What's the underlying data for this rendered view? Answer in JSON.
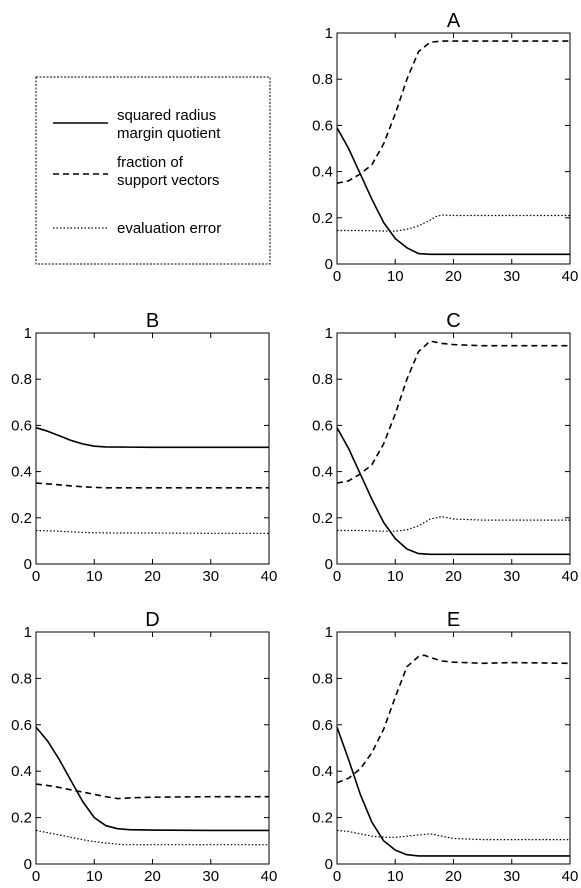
{
  "legend": {
    "entries": [
      {
        "label_lines": [
          "squared radius",
          "margin quotient"
        ],
        "style": "solid"
      },
      {
        "label_lines": [
          "fraction of",
          "support vectors"
        ],
        "style": "dashed"
      },
      {
        "label_lines": [
          "evaluation error"
        ],
        "style": "dotted"
      }
    ]
  },
  "chart_data": [
    {
      "type": "line",
      "title": "A",
      "xlim": [
        0,
        40
      ],
      "ylim": [
        0,
        1
      ],
      "xticks": [
        "0",
        "10",
        "20",
        "30",
        "40"
      ],
      "yticks": [
        "0",
        "0.2",
        "0.4",
        "0.6",
        "0.8",
        "1"
      ],
      "grid": false,
      "series": [
        {
          "style": "solid",
          "x": [
            0,
            2,
            4,
            6,
            8,
            10,
            12,
            14,
            16,
            20,
            30,
            40
          ],
          "y": [
            0.59,
            0.5,
            0.39,
            0.28,
            0.18,
            0.11,
            0.07,
            0.045,
            0.042,
            0.042,
            0.042,
            0.042
          ]
        },
        {
          "style": "dashed",
          "x": [
            0,
            2,
            4,
            6,
            8,
            10,
            12,
            14,
            16,
            18,
            20,
            30,
            40
          ],
          "y": [
            0.35,
            0.36,
            0.39,
            0.43,
            0.52,
            0.65,
            0.8,
            0.92,
            0.96,
            0.965,
            0.965,
            0.965,
            0.965
          ]
        },
        {
          "style": "dotted",
          "x": [
            0,
            4,
            8,
            10,
            12,
            14,
            16,
            17,
            18,
            20,
            30,
            40
          ],
          "y": [
            0.145,
            0.145,
            0.143,
            0.142,
            0.15,
            0.165,
            0.19,
            0.205,
            0.212,
            0.21,
            0.21,
            0.21
          ]
        }
      ]
    },
    {
      "type": "line",
      "title": "B",
      "xlim": [
        0,
        40
      ],
      "ylim": [
        0,
        1
      ],
      "xticks": [
        "0",
        "10",
        "20",
        "30",
        "40"
      ],
      "yticks": [
        "0",
        "0.2",
        "0.4",
        "0.6",
        "0.8",
        "1"
      ],
      "grid": false,
      "series": [
        {
          "style": "solid",
          "x": [
            0,
            2,
            4,
            6,
            8,
            10,
            12,
            15,
            20,
            30,
            40
          ],
          "y": [
            0.59,
            0.575,
            0.555,
            0.535,
            0.52,
            0.51,
            0.507,
            0.506,
            0.505,
            0.505,
            0.505
          ]
        },
        {
          "style": "dashed",
          "x": [
            0,
            3,
            6,
            9,
            12,
            15,
            20,
            30,
            40
          ],
          "y": [
            0.35,
            0.345,
            0.338,
            0.333,
            0.33,
            0.33,
            0.33,
            0.33,
            0.33
          ]
        },
        {
          "style": "dotted",
          "x": [
            0,
            3,
            6,
            10,
            15,
            20,
            30,
            40
          ],
          "y": [
            0.145,
            0.143,
            0.139,
            0.135,
            0.134,
            0.134,
            0.133,
            0.133
          ]
        }
      ]
    },
    {
      "type": "line",
      "title": "C",
      "xlim": [
        0,
        40
      ],
      "ylim": [
        0,
        1
      ],
      "xticks": [
        "0",
        "10",
        "20",
        "30",
        "40"
      ],
      "yticks": [
        "0",
        "0.2",
        "0.4",
        "0.6",
        "0.8",
        "1"
      ],
      "grid": false,
      "series": [
        {
          "style": "solid",
          "x": [
            0,
            2,
            4,
            6,
            8,
            10,
            12,
            14,
            16,
            20,
            30,
            40
          ],
          "y": [
            0.59,
            0.5,
            0.39,
            0.28,
            0.18,
            0.11,
            0.065,
            0.045,
            0.042,
            0.042,
            0.042,
            0.042
          ]
        },
        {
          "style": "dashed",
          "x": [
            0,
            2,
            4,
            6,
            8,
            10,
            12,
            14,
            16,
            18,
            20,
            25,
            30,
            40
          ],
          "y": [
            0.35,
            0.36,
            0.39,
            0.43,
            0.52,
            0.65,
            0.8,
            0.92,
            0.965,
            0.955,
            0.95,
            0.945,
            0.945,
            0.945
          ]
        },
        {
          "style": "dotted",
          "x": [
            0,
            4,
            8,
            10,
            12,
            14,
            16,
            18,
            20,
            25,
            30,
            40
          ],
          "y": [
            0.145,
            0.145,
            0.142,
            0.142,
            0.148,
            0.165,
            0.195,
            0.205,
            0.195,
            0.19,
            0.19,
            0.19
          ]
        }
      ]
    },
    {
      "type": "line",
      "title": "D",
      "xlim": [
        0,
        40
      ],
      "ylim": [
        0,
        1
      ],
      "xticks": [
        "0",
        "10",
        "20",
        "30",
        "40"
      ],
      "yticks": [
        "0",
        "0.2",
        "0.4",
        "0.6",
        "0.8",
        "1"
      ],
      "grid": false,
      "series": [
        {
          "style": "solid",
          "x": [
            0,
            2,
            4,
            6,
            8,
            10,
            12,
            14,
            16,
            20,
            30,
            40
          ],
          "y": [
            0.59,
            0.53,
            0.45,
            0.36,
            0.27,
            0.2,
            0.165,
            0.152,
            0.148,
            0.146,
            0.145,
            0.145
          ]
        },
        {
          "style": "dashed",
          "x": [
            0,
            3,
            6,
            9,
            12,
            14,
            16,
            20,
            30,
            40
          ],
          "y": [
            0.345,
            0.335,
            0.32,
            0.305,
            0.29,
            0.282,
            0.285,
            0.288,
            0.29,
            0.29
          ]
        },
        {
          "style": "dotted",
          "x": [
            0,
            3,
            6,
            9,
            12,
            15,
            20,
            30,
            40
          ],
          "y": [
            0.145,
            0.13,
            0.115,
            0.1,
            0.09,
            0.083,
            0.083,
            0.083,
            0.083
          ]
        }
      ]
    },
    {
      "type": "line",
      "title": "E",
      "xlim": [
        0,
        40
      ],
      "ylim": [
        0,
        1
      ],
      "xticks": [
        "0",
        "10",
        "20",
        "30",
        "40"
      ],
      "yticks": [
        "0",
        "0.2",
        "0.4",
        "0.6",
        "0.8",
        "1"
      ],
      "grid": false,
      "series": [
        {
          "style": "solid",
          "x": [
            0,
            2,
            4,
            6,
            8,
            10,
            12,
            14,
            16,
            20,
            30,
            40
          ],
          "y": [
            0.59,
            0.45,
            0.3,
            0.18,
            0.1,
            0.06,
            0.04,
            0.035,
            0.035,
            0.035,
            0.035,
            0.035
          ]
        },
        {
          "style": "dashed",
          "x": [
            0,
            2,
            4,
            6,
            8,
            10,
            12,
            14,
            15,
            16,
            18,
            20,
            25,
            30,
            40
          ],
          "y": [
            0.35,
            0.37,
            0.41,
            0.48,
            0.58,
            0.72,
            0.85,
            0.895,
            0.9,
            0.89,
            0.875,
            0.87,
            0.865,
            0.868,
            0.865
          ]
        },
        {
          "style": "dotted",
          "x": [
            0,
            2,
            4,
            6,
            8,
            10,
            12,
            14,
            16,
            18,
            20,
            25,
            30,
            40
          ],
          "y": [
            0.145,
            0.14,
            0.13,
            0.12,
            0.115,
            0.115,
            0.12,
            0.125,
            0.13,
            0.12,
            0.11,
            0.105,
            0.105,
            0.105
          ]
        }
      ]
    }
  ]
}
